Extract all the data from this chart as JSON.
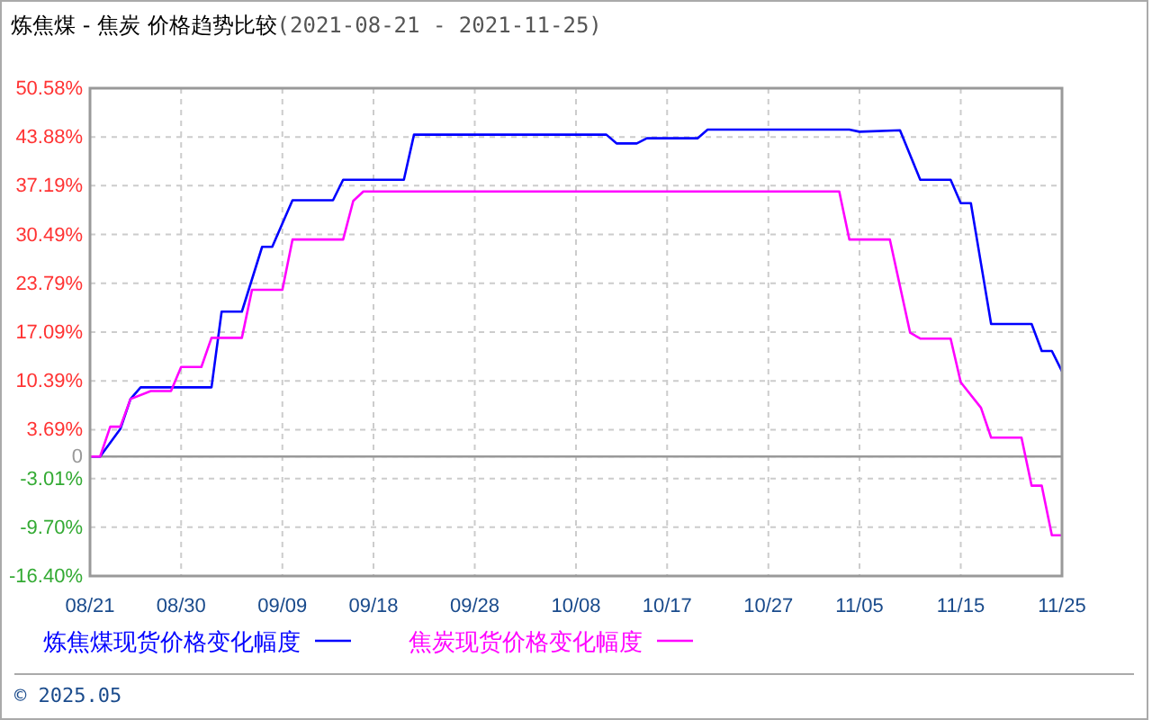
{
  "chart_data": {
    "type": "line",
    "title": "炼焦煤 - 焦炭 价格趋势比较",
    "subtitle": "(2021-08-21 - 2021-11-25)",
    "xlim": [
      "2021-08-21",
      "2021-11-25"
    ],
    "xticks": [
      {
        "value": "2021-08-21",
        "label": "08/21"
      },
      {
        "value": "2021-08-30",
        "label": "08/30"
      },
      {
        "value": "2021-09-09",
        "label": "09/09"
      },
      {
        "value": "2021-09-18",
        "label": "09/18"
      },
      {
        "value": "2021-09-28",
        "label": "09/28"
      },
      {
        "value": "2021-10-08",
        "label": "10/08"
      },
      {
        "value": "2021-10-17",
        "label": "10/17"
      },
      {
        "value": "2021-10-27",
        "label": "10/27"
      },
      {
        "value": "2021-11-05",
        "label": "11/05"
      },
      {
        "value": "2021-11-15",
        "label": "11/15"
      },
      {
        "value": "2021-11-25",
        "label": "11/25"
      }
    ],
    "ylim": [
      -16.4,
      50.58
    ],
    "yticks": [
      {
        "value": -16.4,
        "label": "-16.40%"
      },
      {
        "value": -9.7,
        "label": "-9.70%"
      },
      {
        "value": -3.01,
        "label": "-3.01%"
      },
      0,
      {
        "value": 3.69,
        "label": "3.69%"
      },
      {
        "value": 10.39,
        "label": "10.39%"
      },
      {
        "value": 17.09,
        "label": "17.09%"
      },
      {
        "value": 23.79,
        "label": "23.79%"
      },
      {
        "value": 30.49,
        "label": "30.49%"
      },
      {
        "value": 37.19,
        "label": "37.19%"
      },
      {
        "value": 43.88,
        "label": "43.88%"
      },
      {
        "value": 50.58,
        "label": "50.58%"
      }
    ],
    "grid": true,
    "legend": "bottom",
    "line_style": "solid",
    "marker": "none",
    "ref_lines": [
      {
        "axis": "y",
        "value": 0,
        "color": "#999999"
      }
    ],
    "annotations": [
      "© 2025.05"
    ],
    "series": [
      {
        "name": "炼焦煤现货价格变化幅度",
        "color": "#0000ff",
        "x": [
          "2021-08-21",
          "2021-08-22",
          "2021-08-24",
          "2021-08-25",
          "2021-08-26",
          "2021-09-02",
          "2021-09-03",
          "2021-09-05",
          "2021-09-07",
          "2021-09-08",
          "2021-09-10",
          "2021-09-14",
          "2021-09-15",
          "2021-09-21",
          "2021-09-22",
          "2021-10-11",
          "2021-10-12",
          "2021-10-14",
          "2021-10-15",
          "2021-10-20",
          "2021-10-21",
          "2021-11-04",
          "2021-11-05",
          "2021-11-09",
          "2021-11-11",
          "2021-11-14",
          "2021-11-15",
          "2021-11-16",
          "2021-11-17",
          "2021-11-18",
          "2021-11-22",
          "2021-11-23",
          "2021-11-24",
          "2021-11-25"
        ],
        "values": [
          0,
          0,
          3.8,
          7.9,
          9.5,
          9.5,
          19.9,
          19.9,
          28.8,
          28.8,
          35.2,
          35.2,
          38.0,
          38.0,
          44.2,
          44.2,
          43.0,
          43.0,
          43.7,
          43.7,
          44.9,
          44.9,
          44.6,
          44.8,
          38.0,
          38.0,
          34.8,
          34.8,
          26.5,
          18.2,
          18.2,
          14.5,
          14.5,
          11.7
        ]
      },
      {
        "name": "焦炭现货价格变化幅度",
        "color": "#ff00ff",
        "x": [
          "2021-08-21",
          "2021-08-22",
          "2021-08-23",
          "2021-08-24",
          "2021-08-25",
          "2021-08-27",
          "2021-08-29",
          "2021-08-30",
          "2021-09-01",
          "2021-09-02",
          "2021-09-05",
          "2021-09-06",
          "2021-09-09",
          "2021-09-10",
          "2021-09-15",
          "2021-09-16",
          "2021-09-17",
          "2021-11-03",
          "2021-11-04",
          "2021-11-08",
          "2021-11-10",
          "2021-11-11",
          "2021-11-14",
          "2021-11-15",
          "2021-11-17",
          "2021-11-18",
          "2021-11-21",
          "2021-11-22",
          "2021-11-23",
          "2021-11-24",
          "2021-11-25"
        ],
        "values": [
          0,
          0,
          4.1,
          4.1,
          7.9,
          9.0,
          9.0,
          12.3,
          12.3,
          16.3,
          16.3,
          22.9,
          22.9,
          29.8,
          29.8,
          35.1,
          36.4,
          36.4,
          29.8,
          29.8,
          17.0,
          16.2,
          16.2,
          10.2,
          6.7,
          2.6,
          2.6,
          -4.0,
          -4.0,
          -10.8,
          -10.8
        ]
      }
    ]
  }
}
